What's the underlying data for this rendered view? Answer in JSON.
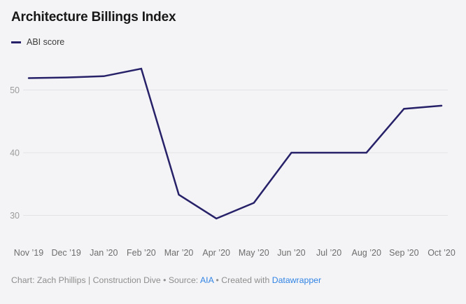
{
  "header": {
    "title": "Architecture Billings Index"
  },
  "legend": {
    "label": "ABI score"
  },
  "chart_data": {
    "type": "line",
    "title": "Architecture Billings Index",
    "categories": [
      "Nov ’19",
      "Dec ’19",
      "Jan ’20",
      "Feb ’20",
      "Mar ’20",
      "Apr ’20",
      "May ’20",
      "Jun ’20",
      "Jul ’20",
      "Aug ’20",
      "Sep ’20",
      "Oct ’20"
    ],
    "series": [
      {
        "name": "ABI score",
        "values": [
          51.9,
          52.0,
          52.2,
          53.4,
          33.3,
          29.5,
          32.0,
          40.0,
          40.0,
          40.0,
          47.0,
          47.5
        ]
      }
    ],
    "xlabel": "",
    "ylabel": "",
    "yticks": [
      30,
      40,
      50
    ],
    "ylim": [
      26,
      55.5
    ],
    "grid": "horizontal",
    "legend_position": "top-left"
  },
  "colors": {
    "background": "#f4f4f6",
    "line": "#262168",
    "grid": "#e3e3e7",
    "xtick_text": "#6d6d6d",
    "ytick_text": "#9b9b9b",
    "title_text": "#181818",
    "footer_text": "#8e8e8e",
    "link": "#3184e4"
  },
  "footer": {
    "text_before": "Chart: Zach Phillips | Construction Dive • Source: ",
    "source_link": "AIA",
    "text_middle": " • Created with ",
    "tool_link": "Datawrapper"
  }
}
